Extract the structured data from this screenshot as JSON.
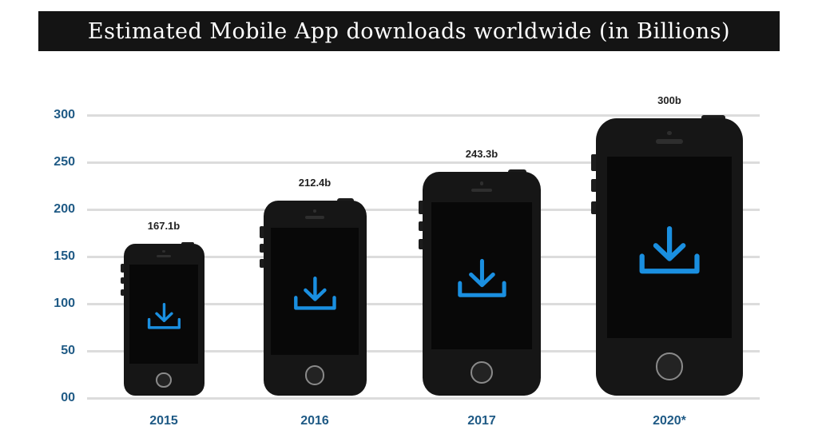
{
  "header": {
    "title": "Estimated Mobile App downloads worldwide (in Billions)"
  },
  "chart_data": {
    "type": "bar",
    "title": "Estimated Mobile App downloads worldwide (in Billions)",
    "xlabel": "",
    "ylabel": "",
    "categories": [
      "2015",
      "2016",
      "2017",
      "2020*"
    ],
    "values": [
      167.1,
      212.4,
      243.3,
      300
    ],
    "value_labels": [
      "167.1b",
      "212.4b",
      "243.3b",
      "300b"
    ],
    "y_ticks": [
      "00",
      "50",
      "100",
      "150",
      "200",
      "250",
      "300"
    ],
    "ylim": [
      0,
      300
    ],
    "grid": true,
    "legend": null,
    "bar_style": "smartphone pictograms with download icon"
  },
  "colors": {
    "title_bar": "#141414",
    "axis_labels": "#1f5a85",
    "gridlines": "#dcdcdc",
    "phone_body": "#161616",
    "download_icon": "#1a8fe0"
  },
  "icons": {
    "bar_glyph": "smartphone-icon",
    "screen_glyph": "download-icon"
  }
}
